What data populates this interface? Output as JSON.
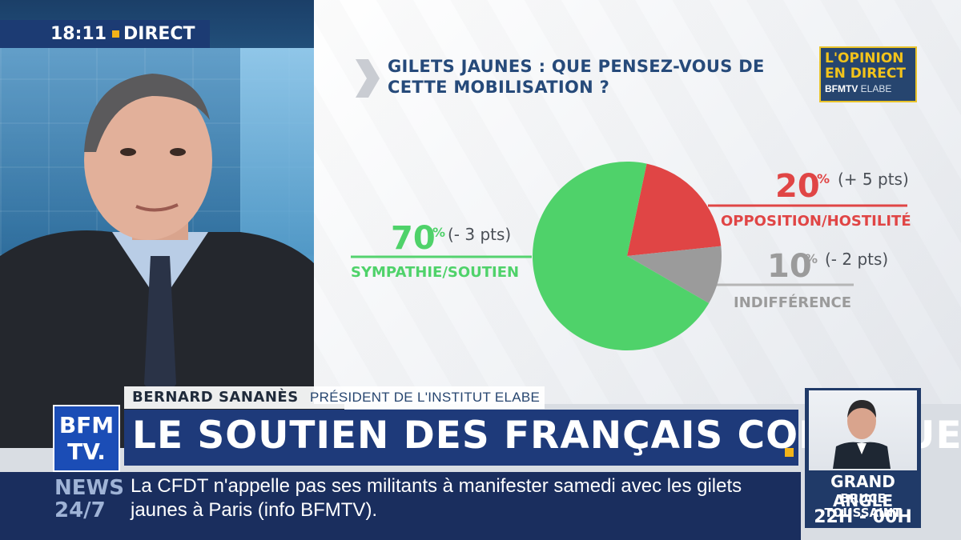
{
  "status": {
    "time": "18:11",
    "live_label": "DIRECT"
  },
  "chart_title": "GILETS JAUNES : QUE PENSEZ-VOUS DE CETTE MOBILISATION ?",
  "logo": {
    "line1": "L'OPINION",
    "line2": "EN DIRECT",
    "line3_bold": "BFMTV",
    "line3_thin": "ELABE"
  },
  "chart_data": {
    "type": "pie",
    "title": "GILETS JAUNES : QUE PENSEZ-VOUS DE CETTE MOBILISATION ?",
    "slices": [
      {
        "label": "OPPOSITION/HOSTILITÉ",
        "value": 20,
        "pct_text": "20",
        "change": "(+ 5 pts)",
        "color": "#e04545"
      },
      {
        "label": "INDIFFÉRENCE",
        "value": 10,
        "pct_text": "10",
        "change": "(- 2 pts)",
        "color": "#9b9b9b"
      },
      {
        "label": "SYMPATHIE/SOUTIEN",
        "value": 70,
        "pct_text": "70",
        "change": "(- 3 pts)",
        "color": "#4fd26a"
      }
    ],
    "percent_sign": "%"
  },
  "lower_third": {
    "name": "BERNARD SANANÈS",
    "role": "PRÉSIDENT DE L'INSTITUT ELABE",
    "headline": "LE SOUTIEN DES FRANÇAIS CONTINUE"
  },
  "channel_logo": {
    "line1": "BFM",
    "line2": "TV."
  },
  "ticker": {
    "tag_line1": "NEWS",
    "tag_line2": "24/7",
    "text": "La CFDT n'appelle pas ses militants à manifester samedi avec les gilets jaunes à Paris (info BFMTV)."
  },
  "promo": {
    "title": "GRAND ANGLE",
    "host": "BRUCE TOUSSAINT",
    "time": "22H - 00H"
  }
}
